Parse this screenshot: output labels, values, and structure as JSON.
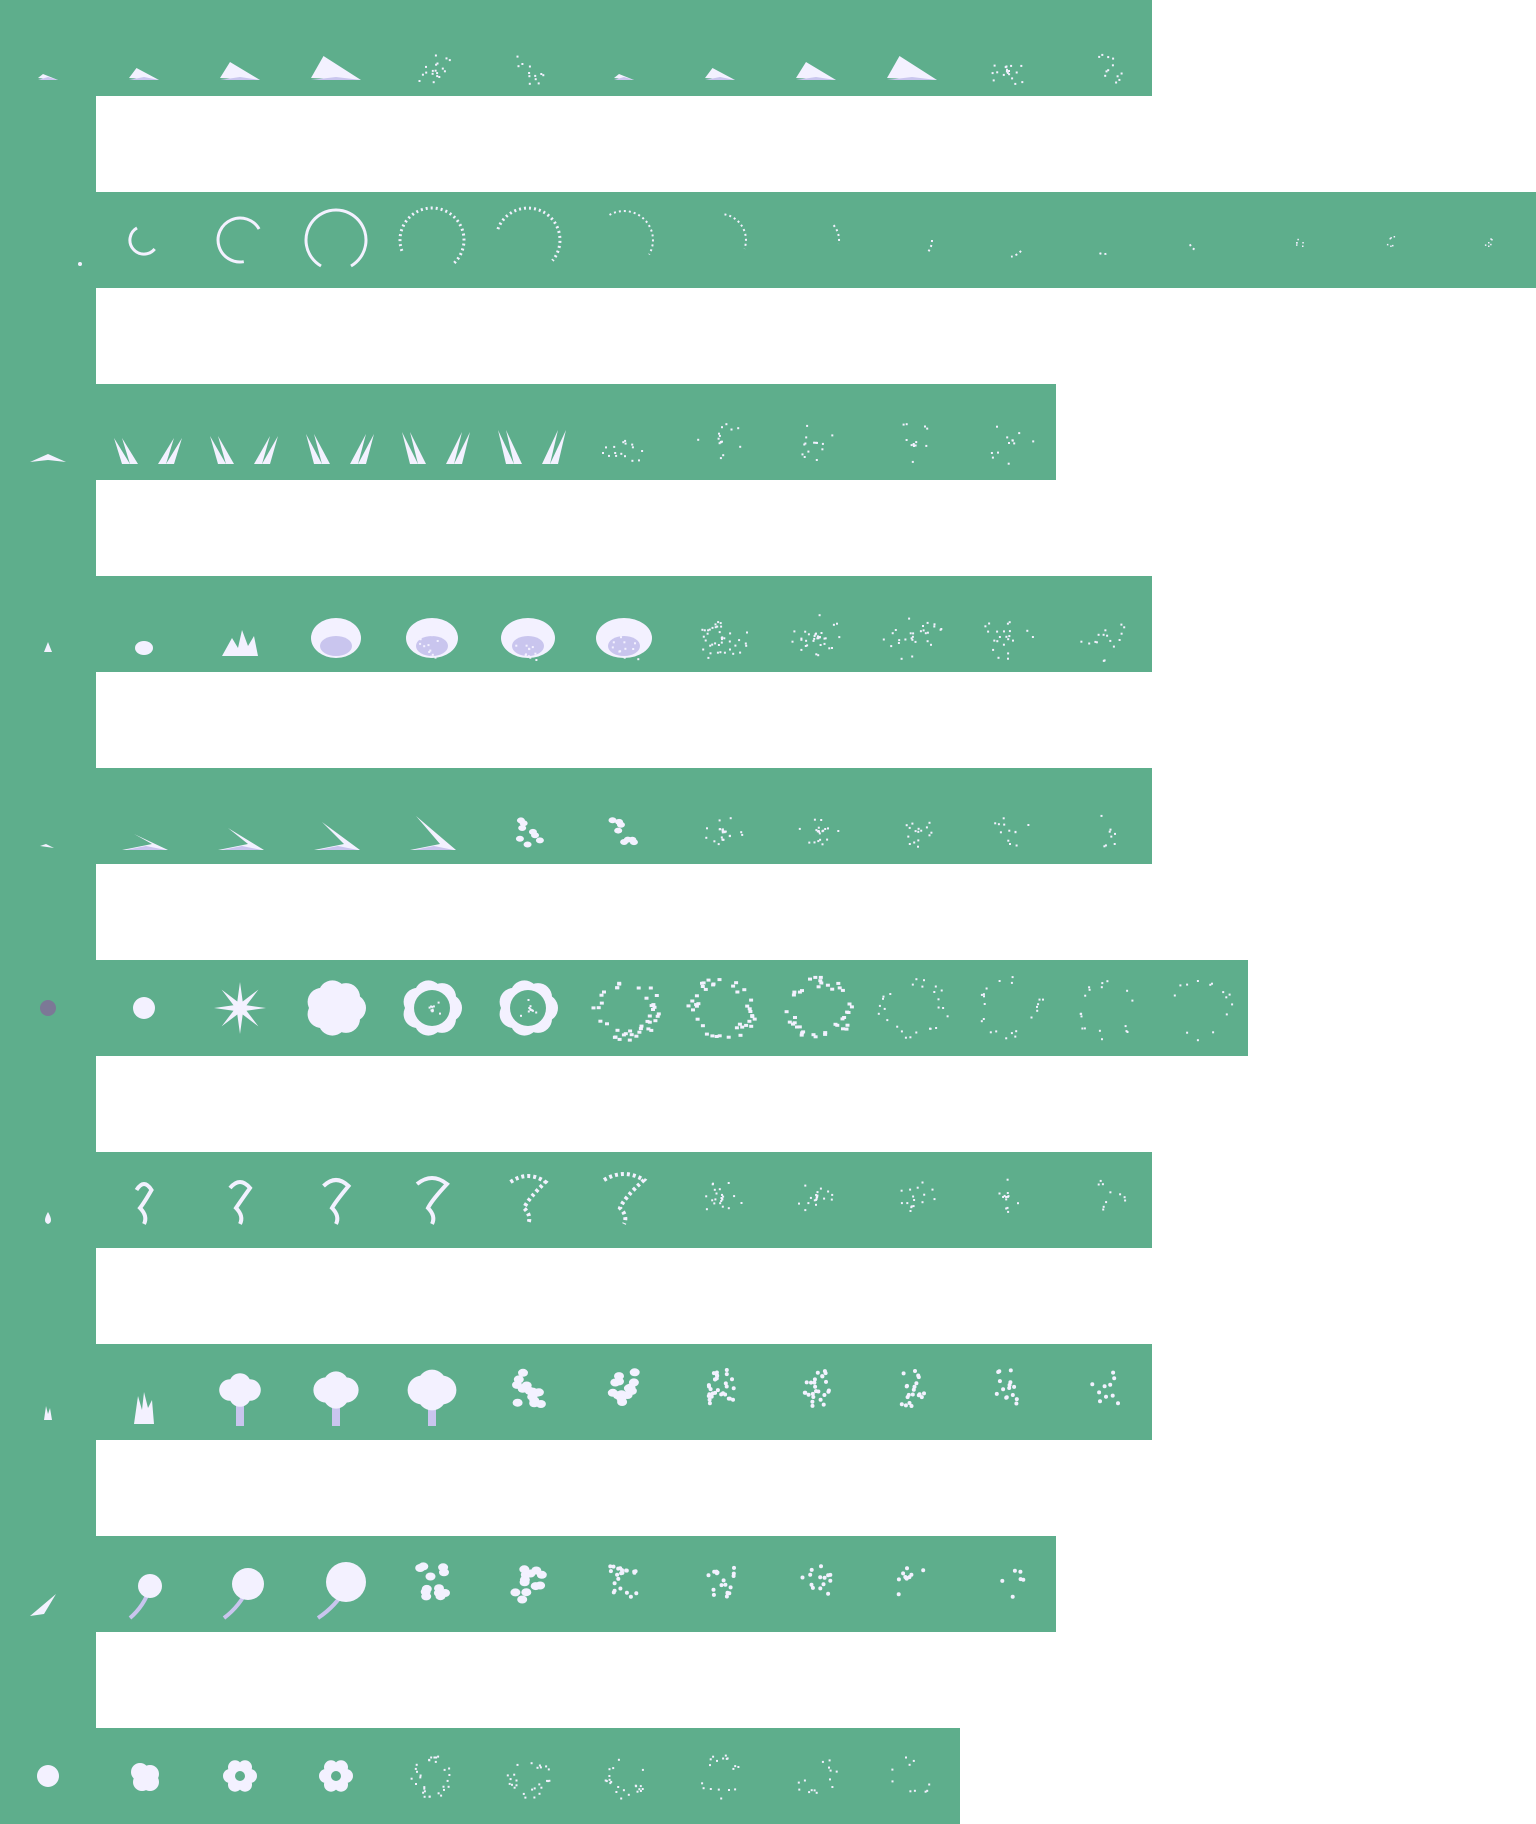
{
  "sheet": {
    "background_color": "#5eae8c",
    "page_color": "#ffffff",
    "fx_color": "#f3f1ff",
    "shade_color": "#c9c5ee",
    "dot_color": "#7c7896"
  },
  "rows": [
    {
      "name": "ground-slash",
      "frames": 12,
      "icon": "ground-slash-icon"
    },
    {
      "name": "ring-swirl",
      "frames": 16,
      "icon": "ring-icon"
    },
    {
      "name": "twin-spikes",
      "frames": 11,
      "icon": "spike-icon"
    },
    {
      "name": "snow-burst",
      "frames": 12,
      "icon": "burst-icon"
    },
    {
      "name": "wave-splash",
      "frames": 12,
      "icon": "splash-icon"
    },
    {
      "name": "cloud-explosion",
      "frames": 13,
      "icon": "cloud-icon"
    },
    {
      "name": "whirl-tornado",
      "frames": 12,
      "icon": "whirl-icon"
    },
    {
      "name": "tree-puff",
      "frames": 12,
      "icon": "tree-icon"
    },
    {
      "name": "comet-puff",
      "frames": 11,
      "icon": "comet-icon"
    },
    {
      "name": "ball-puff",
      "frames": 10,
      "icon": "ball-icon"
    }
  ]
}
